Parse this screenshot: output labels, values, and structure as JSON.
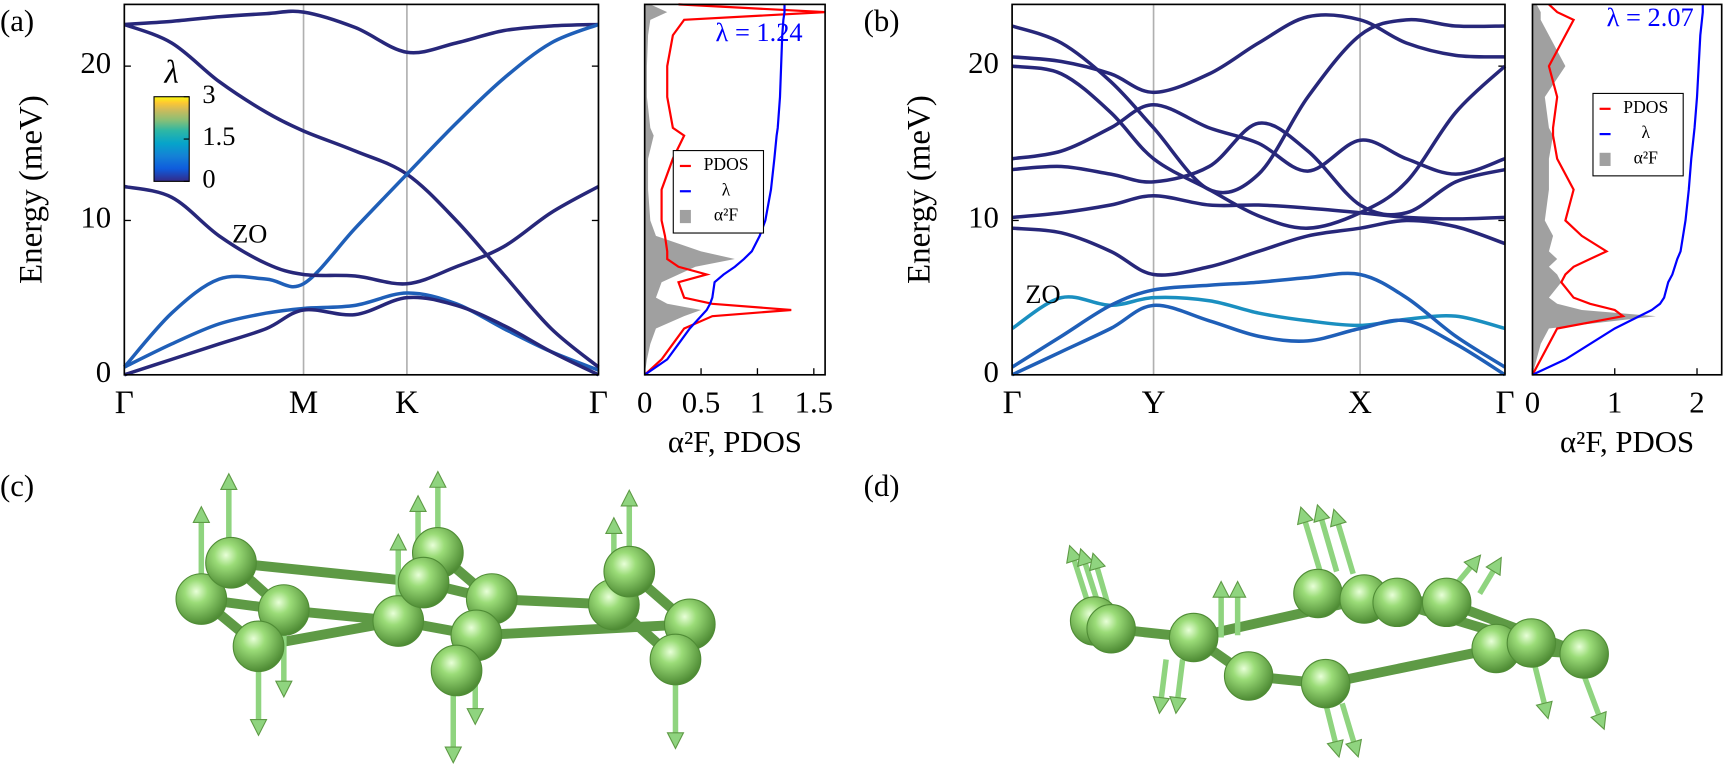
{
  "chart_data": [
    {
      "type": "line",
      "label": "(a)",
      "ylabel": "Energy (meV)",
      "xlim": [
        0,
        1
      ],
      "xticks": [
        {
          "value": 0,
          "label": "Γ"
        },
        {
          "value": 0.378,
          "label": "M"
        },
        {
          "value": 0.596,
          "label": "K"
        },
        {
          "value": 1,
          "label": "Γ"
        }
      ],
      "ylim": [
        0,
        24
      ],
      "yticks": [
        0,
        10,
        20
      ],
      "annotation": "ZO",
      "colorbar": {
        "title": "λ",
        "lim": [
          0,
          3
        ],
        "ticks": [
          0,
          1.5,
          3
        ]
      },
      "x": [
        0,
        0.1,
        0.2,
        0.3,
        0.378,
        0.487,
        0.596,
        0.7,
        0.8,
        0.9,
        1
      ],
      "series": [
        {
          "color": "#27277a",
          "values": [
            22.7,
            22.9,
            23.2,
            23.4,
            23.5,
            22.5,
            20.9,
            21.5,
            22.3,
            22.6,
            22.7
          ]
        },
        {
          "color": "#27277a",
          "values": [
            22.7,
            21.5,
            19,
            17,
            15.8,
            14.5,
            13,
            10,
            6.5,
            3,
            0.5
          ]
        },
        {
          "color": "#1f5fb8",
          "values": [
            0.5,
            4,
            6.2,
            6.2,
            5.9,
            9.5,
            13,
            16.3,
            19.2,
            21.5,
            22.7
          ]
        },
        {
          "color": "#27277a",
          "values": [
            12.2,
            11.5,
            9,
            7.2,
            6.5,
            6.4,
            5.9,
            7,
            8.3,
            10.5,
            12.2
          ]
        },
        {
          "color": "#1f5fb8",
          "values": [
            0.5,
            2,
            3.3,
            4,
            4.3,
            4.5,
            5.3,
            4.6,
            3,
            1.5,
            0.3
          ]
        },
        {
          "color": "#27277a",
          "values": [
            0,
            1,
            2,
            3,
            4.2,
            3.9,
            5,
            4.5,
            3.2,
            1.5,
            0
          ]
        }
      ]
    },
    {
      "type": "dos",
      "xlabel": "α²F, PDOS",
      "annotation": "λ = 1.24",
      "xlim": [
        0,
        1.6
      ],
      "xticks": [
        0,
        0.5,
        1,
        1.5
      ],
      "ylim": [
        0,
        24
      ],
      "y": [
        0,
        1,
        2,
        3,
        3.8,
        4.2,
        4.6,
        5,
        6,
        6.5,
        7,
        7.5,
        8,
        9,
        10,
        12,
        14,
        15.5,
        16,
        18,
        20,
        22,
        23,
        23.5,
        24
      ],
      "series": [
        {
          "name": "PDOS",
          "color": "#ff0000",
          "values": [
            0,
            0.15,
            0.25,
            0.35,
            0.6,
            1.3,
            0.6,
            0.35,
            0.3,
            0.55,
            0.3,
            0.2,
            0.2,
            0.18,
            0.15,
            0.15,
            0.25,
            0.35,
            0.25,
            0.2,
            0.2,
            0.25,
            0.35,
            1.6,
            0.3
          ]
        },
        {
          "name": "λ",
          "color": "#0000ff",
          "values": [
            0,
            0.2,
            0.3,
            0.4,
            0.5,
            0.55,
            0.58,
            0.6,
            0.62,
            0.7,
            0.8,
            0.88,
            0.95,
            1.02,
            1.07,
            1.12,
            1.15,
            1.17,
            1.18,
            1.2,
            1.21,
            1.22,
            1.23,
            1.24,
            1.24
          ]
        },
        {
          "name": "α²F",
          "color": "#a0a0a0",
          "fill": true,
          "values": [
            0,
            0.02,
            0.05,
            0.1,
            0.35,
            0.5,
            0.2,
            0.1,
            0.15,
            0.3,
            0.45,
            0.8,
            0.5,
            0.1,
            0.05,
            0.03,
            0.03,
            0.08,
            0.05,
            0.02,
            0.02,
            0.03,
            0.05,
            0.2,
            0.05
          ]
        }
      ]
    },
    {
      "type": "line",
      "label": "(b)",
      "ylabel": "Energy (meV)",
      "xlim": [
        0,
        1
      ],
      "xticks": [
        {
          "value": 0,
          "label": "Γ"
        },
        {
          "value": 0.287,
          "label": "Y"
        },
        {
          "value": 0.706,
          "label": "X"
        },
        {
          "value": 1,
          "label": "Γ"
        }
      ],
      "ylim": [
        0,
        24
      ],
      "yticks": [
        0,
        10,
        20
      ],
      "annotation": "ZO",
      "x": [
        0,
        0.1,
        0.2,
        0.287,
        0.4,
        0.5,
        0.6,
        0.706,
        0.8,
        0.9,
        1
      ],
      "series": [
        {
          "color": "#27277a",
          "values": [
            22.6,
            21.5,
            19,
            16,
            12,
            13,
            18,
            22,
            23,
            22.6,
            22.6
          ]
        },
        {
          "color": "#27277a",
          "values": [
            20.6,
            20.3,
            19.5,
            18.3,
            19.5,
            21.5,
            23.2,
            23,
            21.5,
            20.7,
            20.6
          ]
        },
        {
          "color": "#27277a",
          "values": [
            20,
            19.5,
            17,
            14,
            12,
            10.3,
            9.5,
            10.5,
            12.5,
            17,
            20
          ]
        },
        {
          "color": "#27277a",
          "values": [
            14,
            14.5,
            16,
            17.5,
            16,
            15,
            13.2,
            15.2,
            14,
            13,
            14
          ]
        },
        {
          "color": "#27277a",
          "values": [
            13.3,
            13.5,
            13,
            12.5,
            13.5,
            16.3,
            14.5,
            11,
            10.5,
            12.5,
            13.3
          ]
        },
        {
          "color": "#27277a",
          "values": [
            10.2,
            10.5,
            11,
            11.6,
            11,
            11,
            10.8,
            10.5,
            10.2,
            10.1,
            10.2
          ]
        },
        {
          "color": "#27277a",
          "values": [
            9.5,
            9.2,
            8,
            6.5,
            7,
            8,
            9,
            9.5,
            10,
            9.6,
            8.5
          ]
        },
        {
          "color": "#1a8fc0",
          "values": [
            3,
            5,
            4.5,
            5,
            4.8,
            4,
            3.5,
            3.2,
            3.6,
            3.8,
            3
          ]
        },
        {
          "color": "#1f5fb8",
          "values": [
            0.5,
            2.5,
            4.5,
            5.5,
            5.8,
            6,
            6.3,
            6.5,
            5,
            2.5,
            0.5
          ]
        },
        {
          "color": "#1f5fb8",
          "values": [
            0,
            1.5,
            3,
            4.5,
            3.5,
            2.5,
            2.2,
            3,
            3.5,
            2,
            0
          ]
        }
      ]
    },
    {
      "type": "dos",
      "xlabel": "α²F, PDOS",
      "annotation": "λ = 2.07",
      "xlim": [
        0,
        2.3
      ],
      "xticks": [
        0,
        1,
        2
      ],
      "ylim": [
        0,
        24
      ],
      "y": [
        0,
        1,
        2,
        3,
        3.8,
        4.2,
        4.6,
        5,
        6,
        6.5,
        7,
        7.5,
        8,
        9,
        10,
        12,
        14,
        15.5,
        16,
        18,
        20,
        22,
        23,
        23.5,
        24
      ],
      "series": [
        {
          "name": "PDOS",
          "color": "#ff0000",
          "values": [
            0,
            0.1,
            0.2,
            0.3,
            1.1,
            1,
            0.7,
            0.5,
            0.35,
            0.4,
            0.5,
            0.7,
            0.9,
            0.6,
            0.4,
            0.5,
            0.3,
            0.25,
            0.25,
            0.3,
            0.2,
            0.4,
            0.5,
            0.3,
            0.2
          ]
        },
        {
          "name": "λ",
          "color": "#0000ff",
          "values": [
            0,
            0.4,
            0.7,
            1.0,
            1.3,
            1.45,
            1.55,
            1.6,
            1.65,
            1.7,
            1.73,
            1.76,
            1.8,
            1.83,
            1.86,
            1.9,
            1.93,
            1.96,
            1.97,
            2.0,
            2.02,
            2.04,
            2.06,
            2.07,
            2.07
          ]
        },
        {
          "name": "α²F",
          "color": "#a0a0a0",
          "fill": true,
          "values": [
            0,
            0.05,
            0.1,
            0.2,
            1.5,
            0.6,
            0.3,
            0.2,
            0.35,
            0.3,
            0.2,
            0.3,
            0.2,
            0.25,
            0.15,
            0.2,
            0.2,
            0.25,
            0.2,
            0.15,
            0.4,
            0.2,
            0.1,
            0.1,
            0.05
          ]
        }
      ]
    }
  ],
  "structure_panels": [
    {
      "label": "(c)"
    },
    {
      "label": "(d)"
    }
  ]
}
